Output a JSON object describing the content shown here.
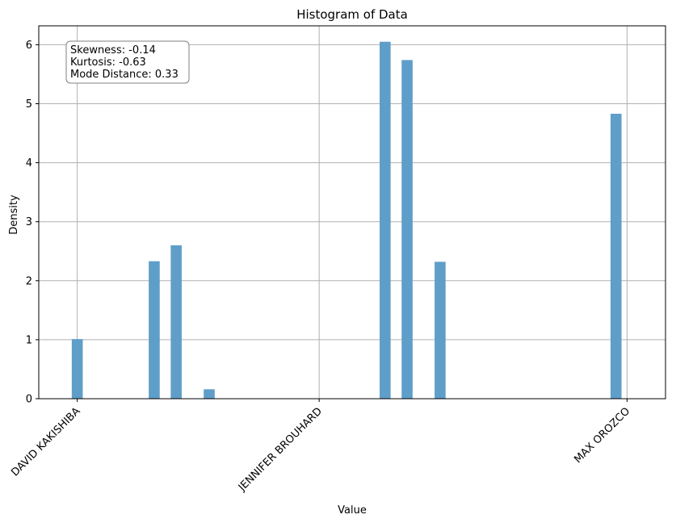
{
  "chart_data": {
    "type": "bar",
    "title": "Histogram of Data",
    "xlabel": "Value",
    "ylabel": "Density",
    "xlim": [
      -0.07,
      1.07
    ],
    "ylim": [
      0,
      6.32
    ],
    "x_ticks": [
      {
        "value": 0.0,
        "label": "DAVID KAKISHIBA"
      },
      {
        "value": 0.44,
        "label": "JENNIFER BROUHARD"
      },
      {
        "value": 1.0,
        "label": "MAX OROZCO"
      }
    ],
    "y_ticks": [
      0,
      1,
      2,
      3,
      4,
      5,
      6
    ],
    "bar_width": 0.02,
    "bars": [
      {
        "x": 0.0,
        "value": 1.01
      },
      {
        "x": 0.14,
        "value": 2.33
      },
      {
        "x": 0.18,
        "value": 2.6
      },
      {
        "x": 0.24,
        "value": 0.16
      },
      {
        "x": 0.56,
        "value": 6.05
      },
      {
        "x": 0.6,
        "value": 5.74
      },
      {
        "x": 0.66,
        "value": 2.32
      },
      {
        "x": 0.98,
        "value": 4.83
      }
    ],
    "grid": true,
    "bar_color": "#5f9ec9",
    "annotation": {
      "lines": [
        "Skewness: -0.14",
        "Kurtosis: -0.63",
        "Mode Distance: 0.33"
      ],
      "placement": "top-left"
    }
  }
}
